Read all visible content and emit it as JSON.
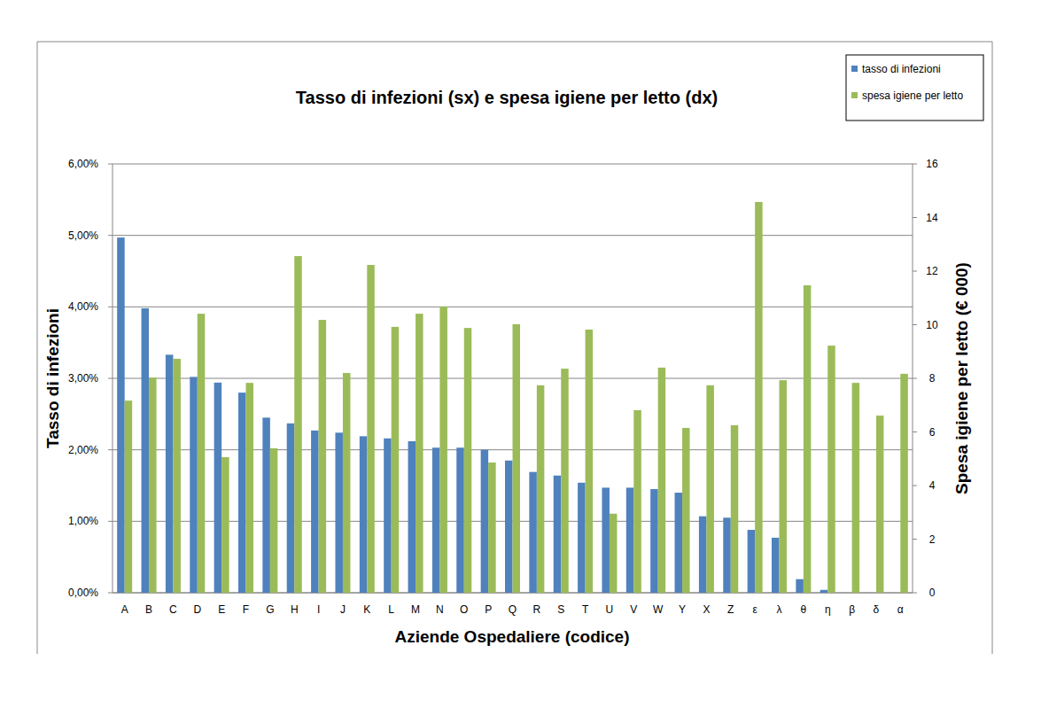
{
  "chart_data": {
    "type": "bar",
    "title": "Tasso di infezioni (sx) e spesa igiene per letto (dx)",
    "x_label": "Aziende Ospedaliere (codice)",
    "y_label": "Tasso di infezioni",
    "y2_label": "Spesa igiene per letto (€ 000)",
    "categories": [
      "A",
      "B",
      "C",
      "D",
      "E",
      "F",
      "G",
      "H",
      "I",
      "J",
      "K",
      "L",
      "M",
      "N",
      "O",
      "P",
      "Q",
      "R",
      "S",
      "T",
      "U",
      "V",
      "W",
      "Y",
      "X",
      "Z",
      "ε",
      "λ",
      "θ",
      "η",
      "β",
      "δ",
      "α"
    ],
    "series": [
      {
        "name": "tasso di infezioni",
        "color": "#4f81bd",
        "values": [
          4.97,
          3.98,
          3.33,
          3.02,
          2.94,
          2.8,
          2.45,
          2.37,
          2.27,
          2.24,
          2.19,
          2.16,
          2.12,
          2.03,
          2.03,
          2.0,
          1.85,
          1.69,
          1.64,
          1.54,
          1.47,
          1.47,
          1.45,
          1.4,
          1.07,
          1.05,
          0.88,
          0.77,
          0.19,
          0.04,
          0,
          0,
          0
        ]
      },
      {
        "name": "spesa igiene per letto",
        "color": "#9bbb59",
        "axis": "y2",
        "values": [
          7.17,
          8.03,
          8.73,
          10.41,
          5.06,
          7.83,
          5.39,
          12.56,
          10.18,
          8.2,
          12.23,
          9.92,
          10.41,
          10.68,
          9.88,
          4.86,
          10.02,
          7.74,
          8.36,
          9.82,
          2.95,
          6.81,
          8.4,
          6.15,
          7.74,
          6.25,
          14.58,
          7.93,
          11.47,
          9.22,
          7.83,
          6.61,
          8.17
        ]
      }
    ],
    "ylim": [
      0,
      6
    ],
    "yticks": [
      {
        "value": 0,
        "label": "0,00%"
      },
      {
        "value": 1,
        "label": "1,00%"
      },
      {
        "value": 2,
        "label": "2,00%"
      },
      {
        "value": 3,
        "label": "3,00%"
      },
      {
        "value": 4,
        "label": "4,00%"
      },
      {
        "value": 5,
        "label": "5,00%"
      },
      {
        "value": 6,
        "label": "6,00%"
      }
    ],
    "y2lim": [
      0,
      16
    ],
    "y2ticks": [
      0,
      2,
      4,
      6,
      8,
      10,
      12,
      14,
      16
    ],
    "grid": true,
    "legend": "top-right"
  }
}
